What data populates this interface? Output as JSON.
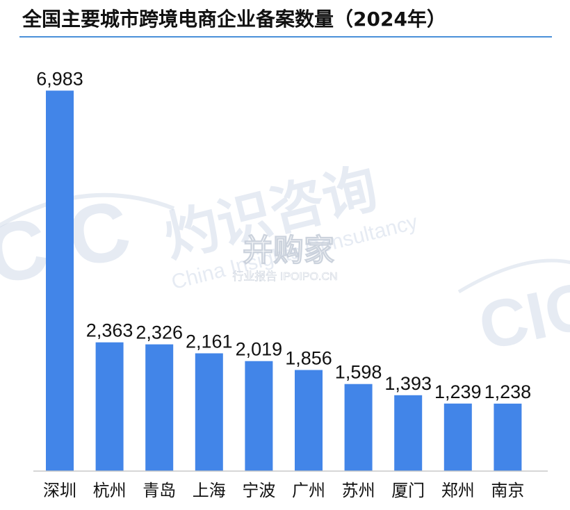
{
  "chart_data": {
    "type": "bar",
    "title": "全国主要城市跨境电商企业备案数量（2024年）",
    "categories": [
      "深圳",
      "杭州",
      "青岛",
      "上海",
      "宁波",
      "广州",
      "苏州",
      "厦门",
      "郑州",
      "南京"
    ],
    "values": [
      6983,
      2363,
      2326,
      2161,
      2019,
      1856,
      1598,
      1393,
      1239,
      1238
    ],
    "value_labels": [
      "6,983",
      "2,363",
      "2,326",
      "2,161",
      "2,019",
      "1,856",
      "1,598",
      "1,393",
      "1,239",
      "1,238"
    ],
    "ylim": [
      0,
      7600
    ],
    "grid": false,
    "bar_color": "#4285e8",
    "accent_color": "#4a90d9"
  },
  "watermarks": {
    "cic_left": "CIC",
    "cic_right": "CIC",
    "company_cn": "灼识咨询",
    "company_en": "China Insights Consultancy",
    "site_cn": "并购家",
    "site_sub": "行业报告 IPOIPO.CN"
  }
}
